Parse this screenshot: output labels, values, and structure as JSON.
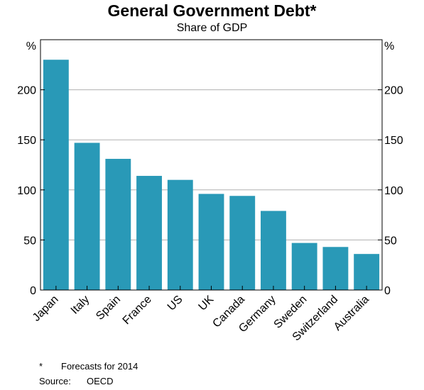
{
  "title": "General Government Debt*",
  "subtitle": "Share of GDP",
  "axis_unit_left": "%",
  "axis_unit_right": "%",
  "notes": {
    "footnote_mark": "*",
    "footnote_text": "Forecasts for 2014",
    "source_label": "Source:",
    "source_text": "OECD"
  },
  "colors": {
    "bar": "#2999b7",
    "grid": "#b0b0b0",
    "axis": "#000000"
  },
  "chart_data": {
    "type": "bar",
    "title": "General Government Debt*",
    "subtitle": "Share of GDP",
    "categories": [
      "Japan",
      "Italy",
      "Spain",
      "France",
      "US",
      "UK",
      "Canada",
      "Germany",
      "Sweden",
      "Switzerland",
      "Australia"
    ],
    "values": [
      230,
      147,
      131,
      114,
      110,
      96,
      94,
      79,
      47,
      43,
      36
    ],
    "ylabel": "%",
    "ylim": [
      0,
      250
    ],
    "yticks": [
      0,
      50,
      100,
      150,
      200
    ],
    "grid": true,
    "legend": "none"
  }
}
